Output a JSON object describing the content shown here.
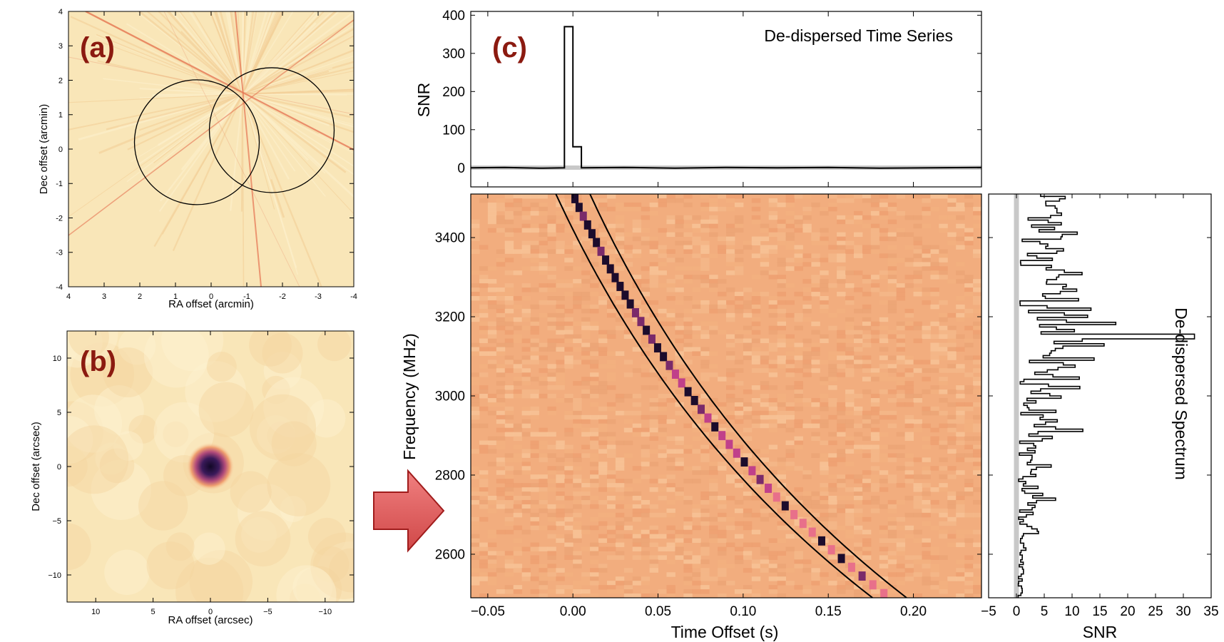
{
  "colors": {
    "panel_letter": "#8b1a10",
    "sky_background": "#f9e6b8",
    "sky_streak": "#e06040",
    "source_core": "#1a0a2e",
    "dynspec_background": "#f2ad7e",
    "pulse_dark": "#1c0c2c",
    "pulse_mid": "#c0408a",
    "arrow_fill": "#e06060",
    "arrow_stroke": "#a01c1c",
    "baseline_band": "#c8c8c8"
  },
  "chart_data": [
    {
      "id": "a",
      "type": "heatmap",
      "panel_label": "(a)",
      "xlabel": "RA offset (arcmin)",
      "ylabel": "Dec offset (arcmin)",
      "xlim": [
        4,
        -4
      ],
      "ylim": [
        -4,
        4
      ],
      "xticks": [
        "4",
        "3",
        "2",
        "1",
        "0",
        "-1",
        "-2",
        "-3",
        "-4"
      ],
      "yticks": [
        "-4",
        "-3",
        "-2",
        "-1",
        "0",
        "1",
        "2",
        "3",
        "4"
      ],
      "circles": [
        {
          "x": 0.4,
          "y": 0.2,
          "r": 1.75
        },
        {
          "x": -1.7,
          "y": 0.55,
          "r": 1.75
        }
      ]
    },
    {
      "id": "b",
      "type": "heatmap",
      "panel_label": "(b)",
      "xlabel": "RA offset (arcsec)",
      "ylabel": "Dec offset (arcsec)",
      "xlim": [
        12.5,
        -12.5
      ],
      "ylim": [
        -12.5,
        12.5
      ],
      "xticks": [
        "10",
        "5",
        "0",
        "−5",
        "−10"
      ],
      "yticks": [
        "−10",
        "−5",
        "0",
        "5",
        "10"
      ],
      "source": {
        "x": 0,
        "y": 0
      }
    },
    {
      "id": "c_top",
      "type": "line",
      "panel_label": "(c)",
      "title": "De-dispersed Time Series",
      "ylabel": "SNR",
      "xlim": [
        -0.06,
        0.24
      ],
      "ylim": [
        -50,
        410
      ],
      "yticks": [
        "0",
        "100",
        "200",
        "300",
        "400"
      ],
      "points": [
        [
          -0.06,
          0
        ],
        [
          -0.04,
          1
        ],
        [
          -0.02,
          -1
        ],
        [
          -0.005,
          0
        ],
        [
          -0.005,
          370
        ],
        [
          0.0,
          370
        ],
        [
          0.0,
          55
        ],
        [
          0.005,
          55
        ],
        [
          0.005,
          0
        ],
        [
          0.03,
          1
        ],
        [
          0.06,
          -1
        ],
        [
          0.09,
          1
        ],
        [
          0.12,
          0
        ],
        [
          0.15,
          1
        ],
        [
          0.18,
          -1
        ],
        [
          0.21,
          0
        ],
        [
          0.24,
          1
        ]
      ]
    },
    {
      "id": "c_main",
      "type": "heatmap",
      "xlabel": "Time Offset (s)",
      "ylabel": "Frequency (MHz)",
      "xlim": [
        -0.06,
        0.24
      ],
      "ylim": [
        2490,
        3510
      ],
      "xticks": [
        "−0.05",
        "0.00",
        "0.05",
        "0.10",
        "0.15",
        "0.20"
      ],
      "yticks": [
        "2600",
        "2800",
        "3000",
        "3200",
        "3400"
      ],
      "sweep": {
        "f_top_mhz": 3510,
        "left_offset_s": -0.01,
        "right_offset_s": 0.01,
        "delay_at_bottom_s": 0.186,
        "f_bottom_mhz": 2490
      }
    },
    {
      "id": "c_right",
      "type": "line",
      "title": "De-dispersed Spectrum",
      "xlabel": "SNR",
      "xlim": [
        -5,
        35
      ],
      "ylim": [
        2490,
        3510
      ],
      "xticks": [
        "−5",
        "0",
        "5",
        "10",
        "15",
        "20",
        "25",
        "30",
        "35"
      ],
      "peak": {
        "snr": 32,
        "freq_mhz": 3150
      }
    }
  ]
}
